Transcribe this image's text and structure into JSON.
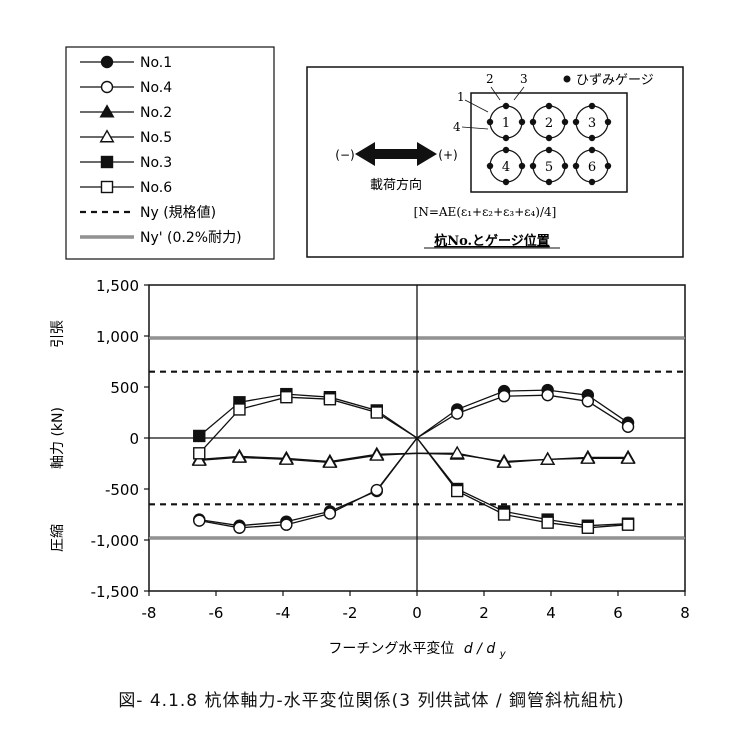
{
  "chart_data": {
    "type": "line",
    "xlabel": "フーチング水平変位",
    "xlabel_var": "d / d",
    "xlabel_sub": "y",
    "ylabel": "軸力 (kN)",
    "ylabel_top": "引張",
    "ylabel_bottom": "圧縮",
    "xlim": [
      -8,
      8
    ],
    "ylim": [
      -1500,
      1500
    ],
    "xticks": [
      -8,
      -6,
      -4,
      -2,
      0,
      2,
      4,
      6,
      8
    ],
    "yticks": [
      -1500,
      -1000,
      -500,
      0,
      500,
      1000,
      1500
    ],
    "ytick_labels": [
      "-1,500",
      "-1,000",
      "-500",
      "0",
      "500",
      "1,000",
      "1,500"
    ],
    "xtick_labels": [
      "-8",
      "-6",
      "-4",
      "-2",
      "0",
      "2",
      "4",
      "6",
      "8"
    ],
    "legend_position": "top-left",
    "series": [
      {
        "name": "No.1",
        "marker": "circle-filled",
        "x": [
          -6.5,
          -5.3,
          -3.9,
          -2.6,
          -1.2,
          0,
          1.2,
          2.6,
          3.9,
          5.1,
          6.3
        ],
        "y": [
          -800,
          -860,
          -820,
          -720,
          -520,
          0,
          280,
          460,
          470,
          420,
          150
        ]
      },
      {
        "name": "No.4",
        "marker": "circle-open",
        "x": [
          -6.5,
          -5.3,
          -3.9,
          -2.6,
          -1.2,
          0,
          1.2,
          2.6,
          3.9,
          5.1,
          6.3
        ],
        "y": [
          -810,
          -880,
          -850,
          -740,
          -510,
          0,
          240,
          410,
          420,
          360,
          110
        ]
      },
      {
        "name": "No.2",
        "marker": "triangle-filled",
        "x": [
          -6.5,
          -5.3,
          -3.9,
          -2.6,
          -1.2,
          0,
          1.2,
          2.6,
          3.9,
          5.1,
          6.3
        ],
        "y": [
          -210,
          -180,
          -200,
          -230,
          -160,
          -150,
          -160,
          -230,
          -210,
          -190,
          -190
        ]
      },
      {
        "name": "No.5",
        "marker": "triangle-open",
        "x": [
          -6.5,
          -5.3,
          -3.9,
          -2.6,
          -1.2,
          0,
          1.2,
          2.6,
          3.9,
          5.1,
          6.3
        ],
        "y": [
          -220,
          -190,
          -210,
          -240,
          -170,
          -150,
          -150,
          -240,
          -210,
          -200,
          -200
        ]
      },
      {
        "name": "No.3",
        "marker": "square-filled",
        "x": [
          -6.5,
          -5.3,
          -3.9,
          -2.6,
          -1.2,
          0,
          1.2,
          2.6,
          3.9,
          5.1,
          6.3
        ],
        "y": [
          20,
          350,
          430,
          400,
          270,
          0,
          -500,
          -720,
          -800,
          -860,
          -840
        ]
      },
      {
        "name": "No.6",
        "marker": "square-open",
        "x": [
          -6.5,
          -5.3,
          -3.9,
          -2.6,
          -1.2,
          0,
          1.2,
          2.6,
          3.9,
          5.1,
          6.3
        ],
        "y": [
          -150,
          280,
          400,
          380,
          250,
          0,
          -520,
          -750,
          -830,
          -880,
          -850
        ]
      }
    ],
    "reference_lines": [
      {
        "name": "Ny (規格値)",
        "style": "dashed",
        "y": [
          650,
          -650
        ]
      },
      {
        "name": "Ny' (0.2%耐力)",
        "style": "solid-gray",
        "y": [
          980,
          -980
        ]
      }
    ]
  },
  "inset": {
    "minus_label": "(−)",
    "plus_label": "(+)",
    "direction_label": "載荷方向",
    "gauge_legend": "ひずみゲージ",
    "gauge_numbers": [
      "1",
      "2",
      "3",
      "4"
    ],
    "pile_numbers": [
      "1",
      "2",
      "3",
      "4",
      "5",
      "6"
    ],
    "formula": "[N=AE(ε₁+ε₂+ε₃+ε₄)/4]",
    "title": "杭No.とゲージ位置"
  },
  "caption": "図- 4.1.8  杭体軸力-水平変位関係(3 列供試体 / 鋼管斜杭組杭)"
}
